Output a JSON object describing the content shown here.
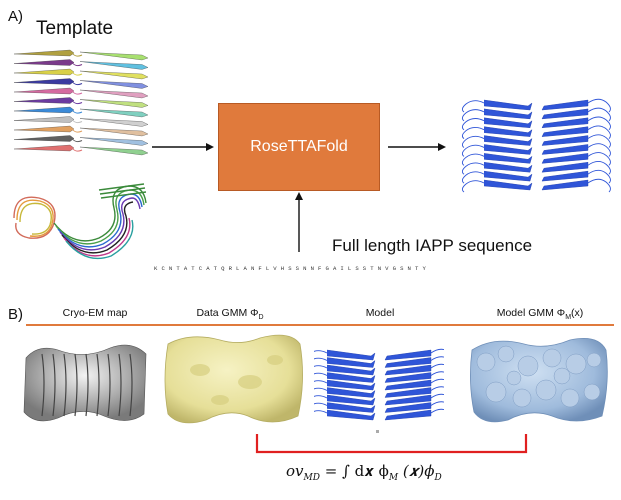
{
  "panel_a": {
    "label": "A)",
    "template_title": "Template",
    "process_box": "RoseTTAFold",
    "sequence_title": "Full length IAPP sequence",
    "sequence": "KCNTATCATQRLANFLVHSSNNFGAILSSTNVGSNTY"
  },
  "panel_b": {
    "label": "B)",
    "columns": [
      {
        "name": "Cryo-EM map",
        "sub": ""
      },
      {
        "name": "Data GMM Φ",
        "sub": "D",
        "suffix": ""
      },
      {
        "name": "Model",
        "sub": "",
        "suffix": ""
      },
      {
        "name": "Model GMM Φ",
        "sub": "M",
        "suffix": "(x)"
      }
    ],
    "formula": {
      "lhs": "ov",
      "lhs_sub": "MD",
      "rhs": "= ∫ d𝒙 ϕ",
      "phi_m_sub": "M",
      "mid": "(𝒙)ϕ",
      "phi_d_sub": "D"
    }
  },
  "colors": {
    "accent": "#e07a3c",
    "model_blue": "#2f55d8",
    "gmm_blue": "#9fbbdc",
    "data_yellow": "#ece7a8",
    "bracket_red": "#e02020"
  }
}
